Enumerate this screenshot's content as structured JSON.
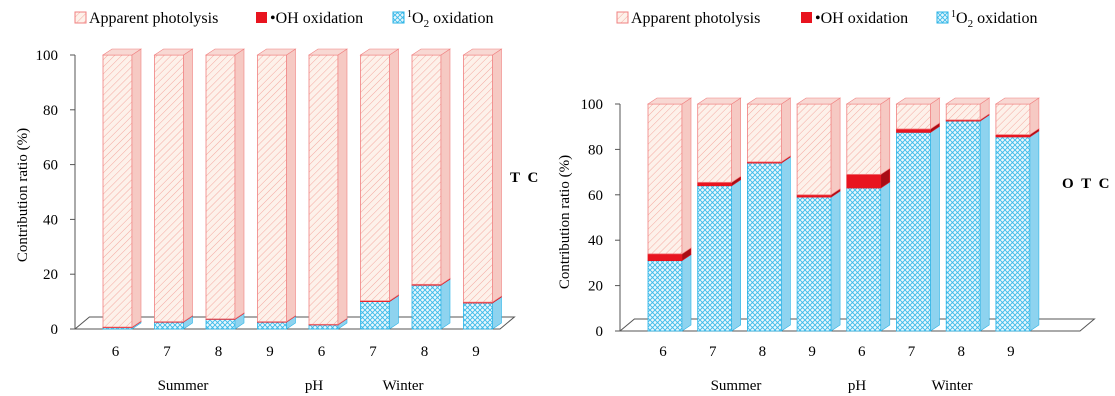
{
  "legend": {
    "photolysis": "Apparent photolysis",
    "oh": "•OH oxidation",
    "o2": "O",
    "o2_pre": "1",
    "o2_sub": "2",
    "o2_post": " oxidation"
  },
  "colors": {
    "photolysis_edge": "#f08080",
    "photolysis_fill": "#fdf1ea",
    "oh": "#e8141f",
    "oh_dark": "#a80d15",
    "o2_edge": "#29b3e6",
    "o2_fill": "#dff3fb",
    "axis": "#555555"
  },
  "chart_data": [
    {
      "type": "bar",
      "stacked": true,
      "label": "T C",
      "ylabel": "Contribution ratio (%)",
      "ylim": [
        0,
        100
      ],
      "yticks": [
        0,
        20,
        40,
        60,
        80,
        100
      ],
      "categories": [
        "6",
        "7",
        "8",
        "9",
        "6",
        "7",
        "8",
        "9"
      ],
      "groups": [
        "Summer",
        "pH",
        "Winter"
      ],
      "series": [
        {
          "name": "¹O₂ oxidation",
          "key": "o2",
          "values": [
            0.5,
            2.5,
            3.5,
            2.5,
            1.5,
            10,
            16,
            9.5
          ]
        },
        {
          "name": "•OH oxidation",
          "key": "oh",
          "values": [
            0.2,
            0.2,
            0.2,
            0.2,
            0.2,
            0.3,
            0.3,
            0.3
          ]
        },
        {
          "name": "Apparent photolysis",
          "key": "photolysis",
          "values": [
            99.3,
            97.3,
            96.3,
            97.3,
            98.3,
            89.7,
            83.7,
            90.2
          ]
        }
      ]
    },
    {
      "type": "bar",
      "stacked": true,
      "label": "O T C",
      "ylabel": "Contribution ratio (%)",
      "ylim": [
        0,
        100
      ],
      "yticks": [
        0,
        20,
        40,
        60,
        80,
        100
      ],
      "categories": [
        "6",
        "7",
        "8",
        "9",
        "6",
        "7",
        "8",
        "9"
      ],
      "groups": [
        "Summer",
        "pH",
        "Winter"
      ],
      "series": [
        {
          "name": "¹O₂ oxidation",
          "key": "o2",
          "values": [
            31,
            64,
            74,
            59,
            63,
            87.5,
            92.5,
            85.5
          ]
        },
        {
          "name": "•OH oxidation",
          "key": "oh",
          "values": [
            3,
            1.5,
            0.5,
            1,
            6,
            1.5,
            0.5,
            1
          ]
        },
        {
          "name": "Apparent photolysis",
          "key": "photolysis",
          "values": [
            66,
            34.5,
            25.5,
            40,
            31,
            11,
            7,
            13.5
          ]
        }
      ]
    }
  ]
}
